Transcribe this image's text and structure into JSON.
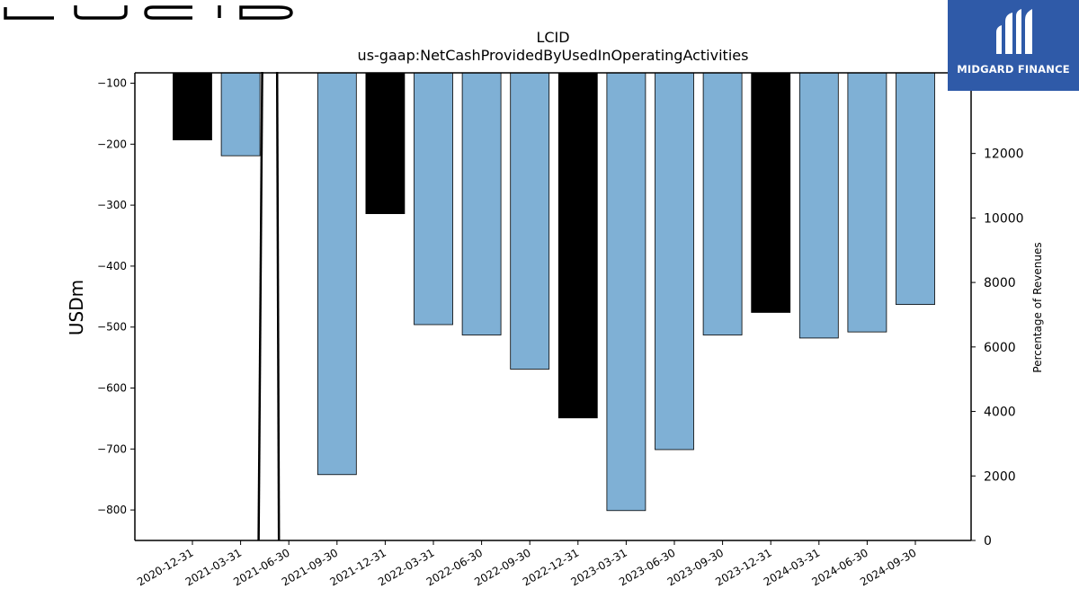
{
  "brand": {
    "logo_text": "LUCID"
  },
  "badge": {
    "text": "MIDGARD FINANCE",
    "color": "#2f5aa8"
  },
  "chart_data": {
    "type": "bar",
    "title": "LCID",
    "subtitle": "us-gaap:NetCashProvidedByUsedInOperatingActivities",
    "ylabel": "USDm",
    "y2label": "Percentage of Revenues",
    "categories": [
      "2020-12-31",
      "2021-03-31",
      "2021-06-30",
      "2021-09-30",
      "2021-12-31",
      "2022-03-31",
      "2022-06-30",
      "2022-09-30",
      "2022-12-31",
      "2023-03-31",
      "2023-06-30",
      "2023-09-30",
      "2023-12-31",
      "2024-03-31",
      "2024-06-30",
      "2024-09-30"
    ],
    "values": [
      -193,
      -219,
      null,
      -742,
      -314,
      -496,
      -513,
      -569,
      -649,
      -801,
      -701,
      -513,
      -476,
      -518,
      -508,
      -463
    ],
    "bar_colors": [
      "#000000",
      "#7fb0d5",
      "#7fb0d5",
      "#7fb0d5",
      "#000000",
      "#7fb0d5",
      "#7fb0d5",
      "#7fb0d5",
      "#000000",
      "#7fb0d5",
      "#7fb0d5",
      "#7fb0d5",
      "#000000",
      "#7fb0d5",
      "#7fb0d5",
      "#7fb0d5"
    ],
    "ylim": [
      -850,
      -83
    ],
    "yticks": [
      -100,
      -200,
      -300,
      -400,
      -500,
      -600,
      -700,
      -800
    ],
    "y2lim": [
      0,
      14500
    ],
    "y2ticks": [
      0,
      2000,
      4000,
      6000,
      8000,
      10000,
      12000
    ],
    "percentage_line": {
      "x": [
        "2021-03-31",
        "2021-06-30"
      ],
      "y_from": 18000,
      "y_to": 0
    },
    "grid": false
  }
}
